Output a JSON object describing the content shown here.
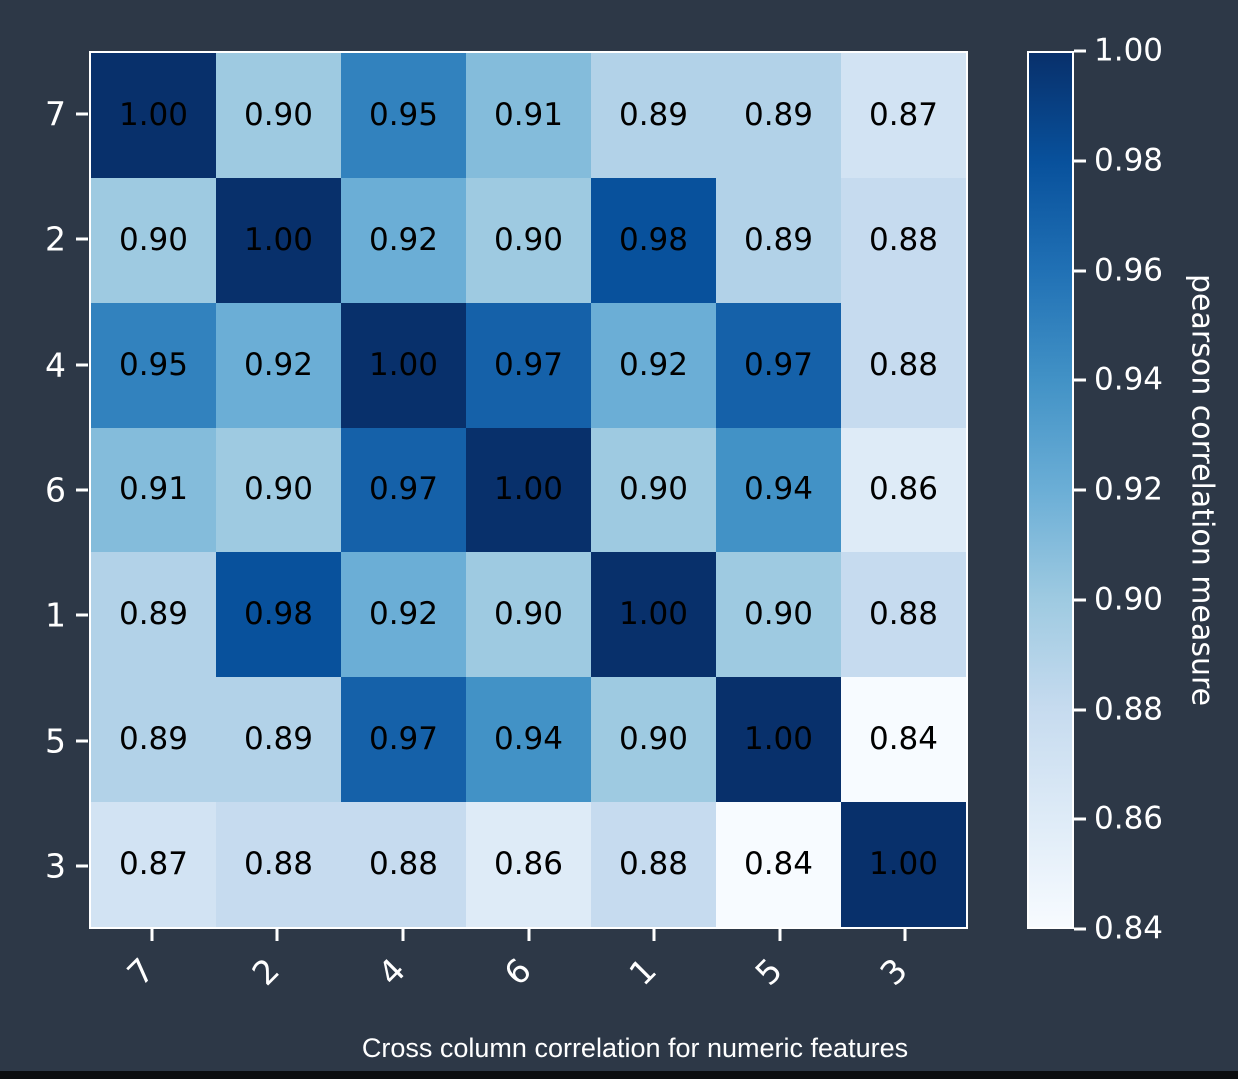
{
  "page": {
    "background_color": "#2d3847",
    "bottom_strip_color": "#0b0d10"
  },
  "chart_data": {
    "type": "heatmap",
    "title": "Cross column correlation for numeric features",
    "colorbar_label": "pearson correlation measure",
    "row_labels": [
      "7",
      "2",
      "4",
      "6",
      "1",
      "5",
      "3"
    ],
    "col_labels": [
      "7",
      "2",
      "4",
      "6",
      "1",
      "5",
      "3"
    ],
    "matrix": [
      [
        1.0,
        0.9,
        0.95,
        0.91,
        0.89,
        0.89,
        0.87
      ],
      [
        0.9,
        1.0,
        0.92,
        0.9,
        0.98,
        0.89,
        0.88
      ],
      [
        0.95,
        0.92,
        1.0,
        0.97,
        0.92,
        0.97,
        0.88
      ],
      [
        0.91,
        0.9,
        0.97,
        1.0,
        0.9,
        0.94,
        0.86
      ],
      [
        0.89,
        0.98,
        0.92,
        0.9,
        1.0,
        0.9,
        0.88
      ],
      [
        0.89,
        0.89,
        0.97,
        0.94,
        0.9,
        1.0,
        0.84
      ],
      [
        0.87,
        0.88,
        0.88,
        0.86,
        0.88,
        0.84,
        1.0
      ]
    ],
    "vmin": 0.84,
    "vmax": 1.0,
    "colorbar_ticks": [
      "1.00",
      "0.98",
      "0.96",
      "0.94",
      "0.92",
      "0.90",
      "0.88",
      "0.86",
      "0.84"
    ],
    "value_decimals": 2,
    "annotation_color": "#000000",
    "tick_color": "#ffffff",
    "spine_color": "#ffffff",
    "colormap": {
      "name": "Blues",
      "stops": [
        "#f7fbff",
        "#deebf7",
        "#c6dbef",
        "#9ecae1",
        "#6baed6",
        "#4292c6",
        "#2171b5",
        "#08519c",
        "#08306b"
      ]
    }
  }
}
